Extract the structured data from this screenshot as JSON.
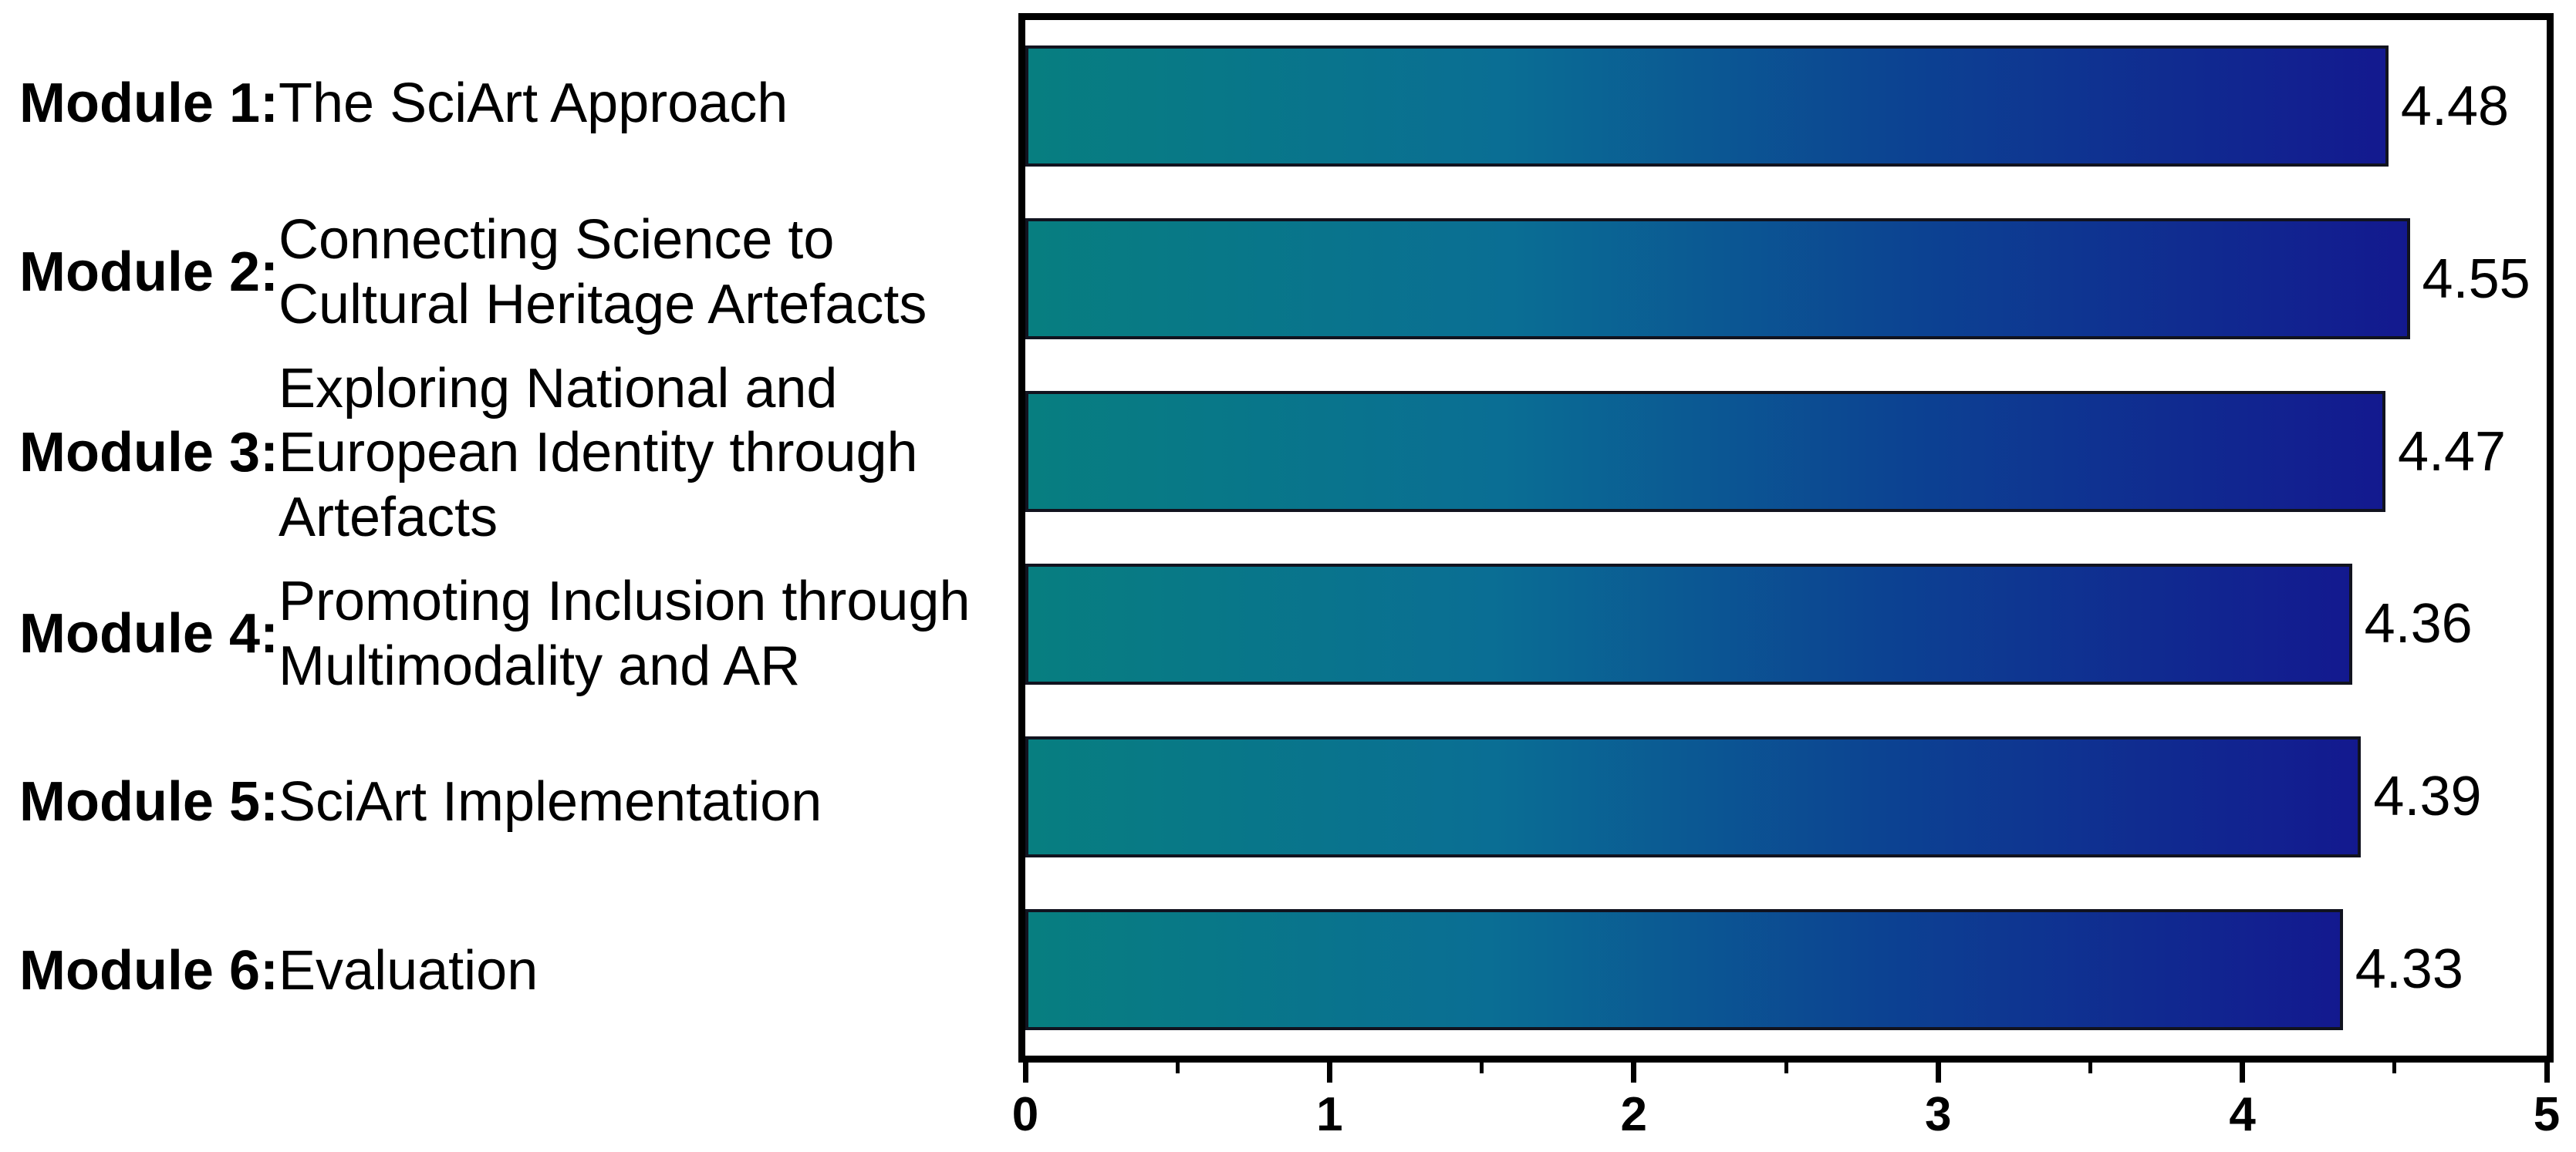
{
  "chart_data": {
    "type": "bar",
    "orientation": "horizontal",
    "title": "",
    "xlabel": "",
    "ylabel": "",
    "xlim": [
      0,
      5
    ],
    "grid": false,
    "legend": false,
    "categories": [
      "Module 1: The SciArt Approach",
      "Module 2: Connecting Science to Cultural Heritage Artefacts",
      "Module 3: Exploring National and European Identity through Artefacts",
      "Module 4: Promoting Inclusion through Multimodality and AR",
      "Module 5: SciArt Implementation",
      "Module 6: Evaluation"
    ],
    "values": [
      4.48,
      4.55,
      4.47,
      4.36,
      4.39,
      4.33
    ],
    "modules": [
      {
        "prefix": "Module 1:",
        "title": "The SciArt Approach",
        "value": 4.48,
        "value_label": "4.48"
      },
      {
        "prefix": "Module 2:",
        "title": "Connecting Science to Cultural Heritage Artefacts",
        "value": 4.55,
        "value_label": "4.55"
      },
      {
        "prefix": "Module 3:",
        "title": "Exploring National and European Identity through Artefacts",
        "value": 4.47,
        "value_label": "4.47"
      },
      {
        "prefix": "Module 4:",
        "title": "Promoting Inclusion through Multimodality and AR",
        "value": 4.36,
        "value_label": "4.36"
      },
      {
        "prefix": "Module 5:",
        "title": "SciArt Implementation",
        "value": 4.39,
        "value_label": "4.39"
      },
      {
        "prefix": "Module 6:",
        "title": "Evaluation",
        "value": 4.33,
        "value_label": "4.33"
      }
    ],
    "x_major_ticks": [
      0,
      1,
      2,
      3,
      4,
      5
    ],
    "x_tick_labels": [
      "0",
      "1",
      "2",
      "3",
      "4",
      "5"
    ],
    "x_minor_ticks": [
      0.5,
      1.5,
      2.5,
      3.5,
      4.5
    ],
    "colors": {
      "bar_gradient_start": "#077e80",
      "bar_gradient_mid1": "#0a6e94",
      "bar_gradient_mid2": "#0c4292",
      "bar_gradient_end": "#13198f",
      "bar_border": "#11131f",
      "frame": "#000000",
      "text": "#000000",
      "background": "#ffffff"
    }
  }
}
